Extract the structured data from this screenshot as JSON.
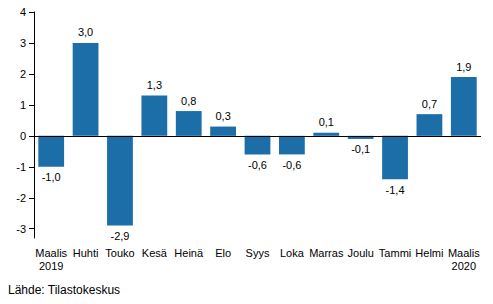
{
  "chart_data": {
    "type": "bar",
    "categories": [
      "Maalis\n2019",
      "Huhti",
      "Touko",
      "Kesä",
      "Heinä",
      "Elo",
      "Syys",
      "Loka",
      "Marras",
      "Joulu",
      "Tammi",
      "Helmi",
      "Maalis\n2020"
    ],
    "values": [
      -1.0,
      3.0,
      -2.9,
      1.3,
      0.8,
      0.3,
      -0.6,
      -0.6,
      0.1,
      -0.1,
      -1.4,
      0.7,
      1.9
    ],
    "value_labels": [
      "-1,0",
      "3,0",
      "-2,9",
      "1,3",
      "0,8",
      "0,3",
      "-0,6",
      "-0,6",
      "0,1",
      "-0,1",
      "-1,4",
      "0,7",
      "1,9"
    ],
    "color": "#1b6ea8",
    "ylim": [
      -3.3,
      4
    ],
    "yticks": [
      -3,
      -2,
      -1,
      0,
      1,
      2,
      3,
      4
    ],
    "grid": false,
    "data_labels": true,
    "source": "Lähde: Tilastokeskus"
  }
}
